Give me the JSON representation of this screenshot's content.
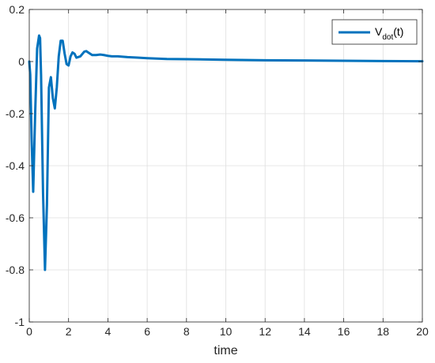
{
  "colors": {
    "series": "#0072bd",
    "axis": "#262626",
    "grid": "#dfdfdf",
    "background": "#ffffff"
  },
  "chart_data": {
    "type": "line",
    "title": "",
    "xlabel": "time",
    "ylabel": "",
    "xlim": [
      0,
      20
    ],
    "ylim": [
      -1,
      0.2
    ],
    "xticks": [
      0,
      2,
      4,
      6,
      8,
      10,
      12,
      14,
      16,
      18,
      20
    ],
    "xtick_labels": [
      "0",
      "2",
      "4",
      "6",
      "8",
      "10",
      "12",
      "14",
      "16",
      "18",
      "20"
    ],
    "yticks": [
      0.2,
      0,
      -0.2,
      -0.4,
      -0.6,
      -0.8,
      -1
    ],
    "ytick_labels": [
      "0.2",
      "0",
      "-0.2",
      "-0.4",
      "-0.6",
      "-0.8",
      "-1"
    ],
    "grid": true,
    "legend": {
      "position": "top-right",
      "entries": [
        {
          "label_main": "V",
          "label_sub": "dot",
          "label_tail": "(t)"
        }
      ]
    },
    "series": [
      {
        "name": "V_dot(t)",
        "x": [
          0,
          0.05,
          0.12,
          0.2,
          0.3,
          0.4,
          0.5,
          0.55,
          0.6,
          0.7,
          0.8,
          0.9,
          1.0,
          1.1,
          1.2,
          1.3,
          1.4,
          1.5,
          1.6,
          1.7,
          1.8,
          1.9,
          2.0,
          2.1,
          2.2,
          2.3,
          2.4,
          2.6,
          2.8,
          2.9,
          3.0,
          3.2,
          3.4,
          3.6,
          3.8,
          4.0,
          4.2,
          4.5,
          5.0,
          5.5,
          6.0,
          7.0,
          8.0,
          10.0,
          12.0,
          14.0,
          16.0,
          18.0,
          20.0
        ],
        "y": [
          0,
          -0.05,
          -0.3,
          -0.5,
          -0.2,
          0.05,
          0.1,
          0.09,
          -0.05,
          -0.5,
          -0.8,
          -0.55,
          -0.1,
          -0.06,
          -0.14,
          -0.18,
          -0.1,
          0.02,
          0.08,
          0.08,
          0.03,
          -0.01,
          -0.015,
          0.02,
          0.035,
          0.03,
          0.015,
          0.02,
          0.038,
          0.04,
          0.035,
          0.025,
          0.025,
          0.027,
          0.025,
          0.022,
          0.02,
          0.02,
          0.017,
          0.015,
          0.013,
          0.01,
          0.009,
          0.007,
          0.005,
          0.004,
          0.003,
          0.002,
          0.001
        ]
      }
    ]
  }
}
